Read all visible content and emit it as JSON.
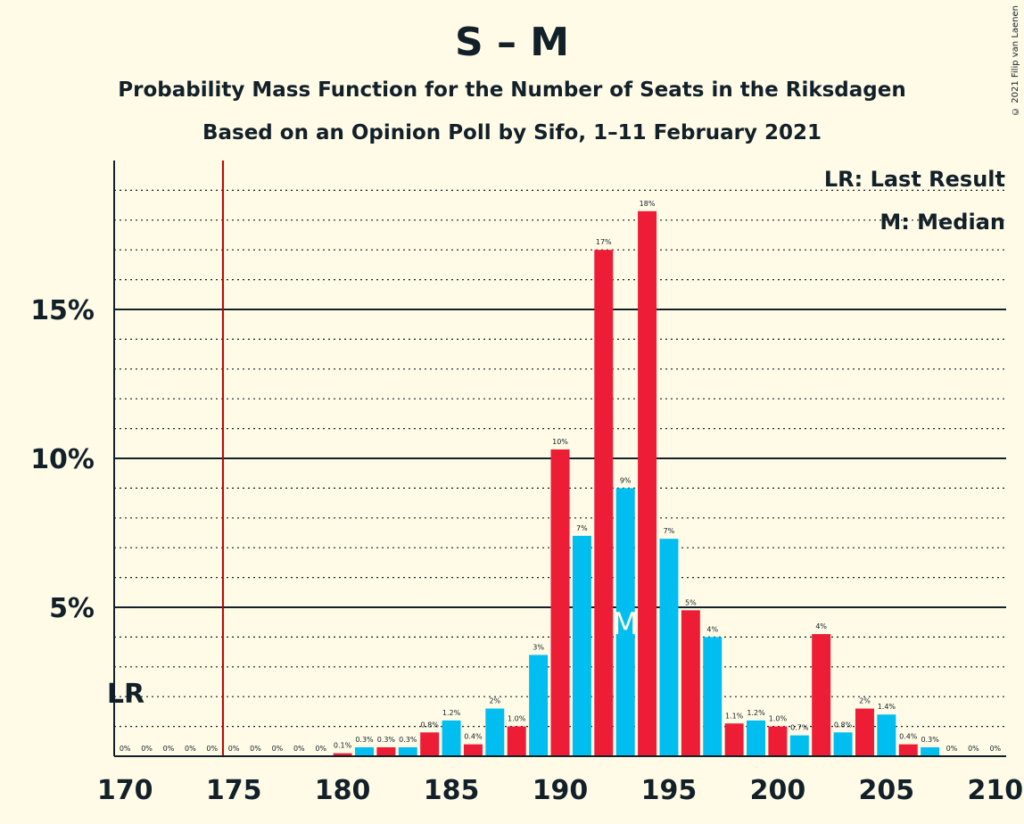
{
  "header": {
    "title": "S – M",
    "subtitle1": "Probability Mass Function for the Number of Seats in the Riksdagen",
    "subtitle2": "Based on an Opinion Poll by Sifo, 1–11 February 2021",
    "copyright": "© 2021 Filip van Laenen"
  },
  "chart_data": {
    "type": "bar",
    "x": [
      170,
      171,
      172,
      173,
      174,
      175,
      176,
      177,
      178,
      179,
      180,
      181,
      182,
      183,
      184,
      185,
      186,
      187,
      188,
      189,
      190,
      191,
      192,
      193,
      194,
      195,
      196,
      197,
      198,
      199,
      200,
      201,
      202,
      203,
      204,
      205,
      206,
      207,
      208,
      209,
      210
    ],
    "values": [
      0,
      0,
      0,
      0,
      0,
      0,
      0,
      0,
      0,
      0,
      0.1,
      0.3,
      0.3,
      0.3,
      0.8,
      1.2,
      0.4,
      1.6,
      1.0,
      3.4,
      10.3,
      7.4,
      17.0,
      9.0,
      18.3,
      7.3,
      4.9,
      4.0,
      1.1,
      1.2,
      1.0,
      0.7,
      4.1,
      0.8,
      1.6,
      1.4,
      0.4,
      0.3,
      0,
      0,
      0
    ],
    "labels": [
      "0%",
      "0%",
      "0%",
      "0%",
      "0%",
      "0%",
      "0%",
      "0%",
      "0%",
      "0%",
      "0.1%",
      "0.3%",
      "0.3%",
      "0.3%",
      "0.8%",
      "1.2%",
      "0.4%",
      "2%",
      "1.0%",
      "3%",
      "10%",
      "7%",
      "17%",
      "9%",
      "18%",
      "7%",
      "5%",
      "4%",
      "1.1%",
      "1.2%",
      "1.0%",
      "0.7%",
      "4%",
      "0.8%",
      "2%",
      "1.4%",
      "0.4%",
      "0.3%",
      "0%",
      "0%",
      "0%"
    ],
    "colors": {
      "odd": "#00BEF0",
      "even": "#EE1D36",
      "axis": "#12202a",
      "last_result": "#C00000"
    },
    "xlim": [
      170,
      210
    ],
    "ylim": [
      0,
      20
    ],
    "x_ticks": [
      170,
      175,
      180,
      185,
      190,
      195,
      200,
      205,
      210
    ],
    "y_ticks": [
      {
        "value": 5,
        "label": "5%"
      },
      {
        "value": 10,
        "label": "10%"
      },
      {
        "value": 15,
        "label": "15%"
      }
    ],
    "minor_grid_step": 1,
    "last_result": {
      "seats": 174.5,
      "label": "LR"
    },
    "median": {
      "seats": 193,
      "label": "M"
    },
    "legend": {
      "placement": "top-right",
      "items": [
        "LR: Last Result",
        "M: Median"
      ]
    }
  }
}
